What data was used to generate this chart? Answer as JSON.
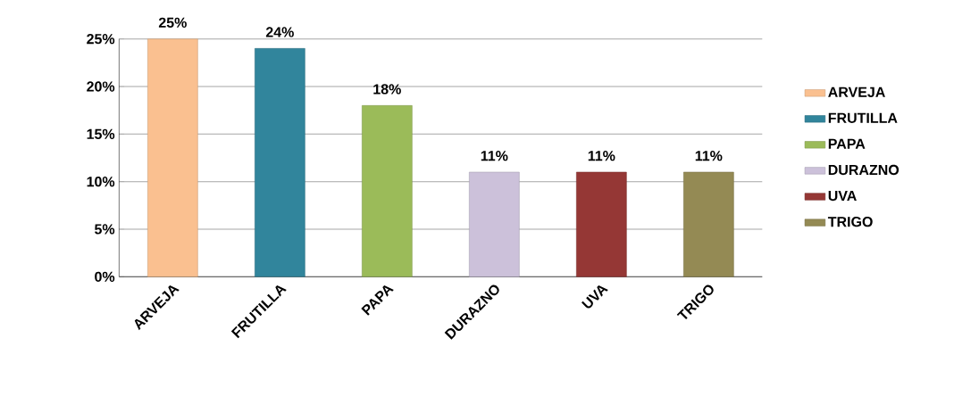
{
  "chart_data": {
    "type": "bar",
    "categories": [
      "ARVEJA",
      "FRUTILLA",
      "PAPA",
      "DURAZNO",
      "UVA",
      "TRIGO"
    ],
    "series": [
      {
        "name": "ARVEJA",
        "color": "#fac090",
        "values": [
          25,
          null,
          null,
          null,
          null,
          null
        ],
        "value_labels": [
          "25%",
          null,
          null,
          null,
          null,
          null
        ]
      },
      {
        "name": "FRUTILLA",
        "color": "#31859c",
        "values": [
          null,
          24,
          null,
          null,
          null,
          null
        ],
        "value_labels": [
          null,
          "24%",
          null,
          null,
          null,
          null
        ]
      },
      {
        "name": "PAPA",
        "color": "#9bbb59",
        "values": [
          null,
          null,
          18,
          null,
          null,
          null
        ],
        "value_labels": [
          null,
          null,
          "18%",
          null,
          null,
          null
        ]
      },
      {
        "name": "DURAZNO",
        "color": "#ccc1da",
        "values": [
          null,
          null,
          null,
          11,
          null,
          null
        ],
        "value_labels": [
          null,
          null,
          null,
          "11%",
          null,
          null
        ]
      },
      {
        "name": "UVA",
        "color": "#953735",
        "values": [
          null,
          null,
          null,
          null,
          11,
          null
        ],
        "value_labels": [
          null,
          null,
          null,
          null,
          "11%",
          null
        ]
      },
      {
        "name": "TRIGO",
        "color": "#948a54",
        "values": [
          null,
          null,
          null,
          null,
          null,
          11
        ],
        "value_labels": [
          null,
          null,
          null,
          null,
          null,
          "11%"
        ]
      }
    ],
    "ylim": [
      0,
      25
    ],
    "yticks": [
      {
        "value": 0,
        "label": "0%"
      },
      {
        "value": 5,
        "label": "5%"
      },
      {
        "value": 10,
        "label": "10%"
      },
      {
        "value": 15,
        "label": "15%"
      },
      {
        "value": 20,
        "label": "20%"
      },
      {
        "value": 25,
        "label": "25%"
      }
    ],
    "grid": "y",
    "legend": "right"
  }
}
